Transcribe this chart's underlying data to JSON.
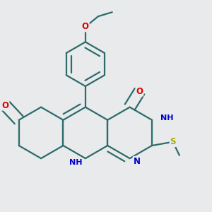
{
  "bg_color": "#e8eaec",
  "bond_color": "#2d6b6b",
  "bond_lw": 1.6,
  "atom_colors": {
    "O": "#dd0000",
    "N": "#0000cc",
    "S": "#aaaa00"
  },
  "fs": 8.5,
  "dbl_sep": 0.022
}
